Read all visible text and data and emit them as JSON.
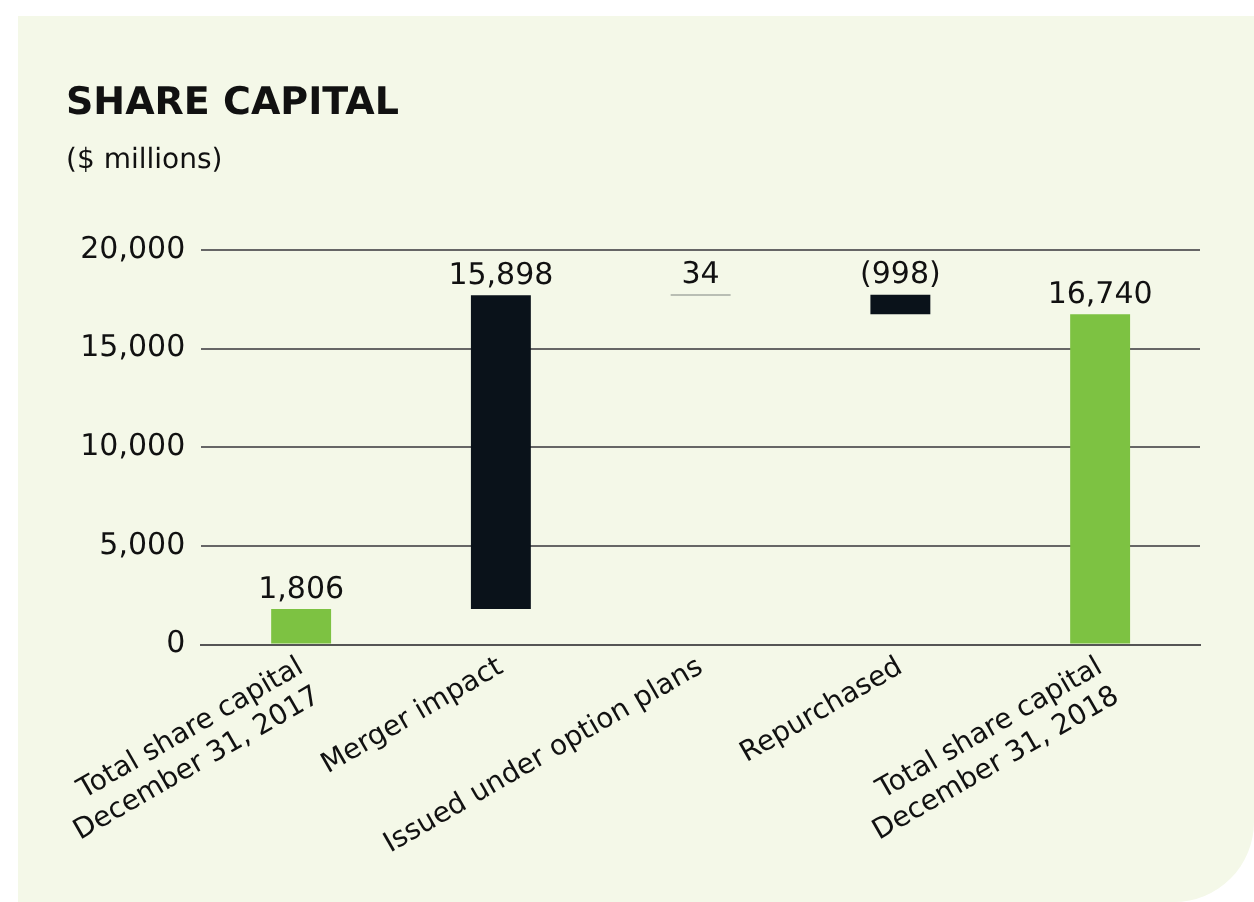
{
  "chart_data": {
    "type": "bar",
    "title": "SHARE CAPITAL",
    "subtitle": "($ millions)",
    "categories": [
      "Total share capital\nDecember 31, 2017",
      "Merger impact",
      "Issued under option plans",
      "Repurchased",
      "Total share capital\nDecember 31, 2018"
    ],
    "values": [
      1806,
      15898,
      34,
      -998,
      16740
    ],
    "base": [
      0,
      1806,
      17704,
      17738,
      0
    ],
    "colors": [
      "#7dc242",
      "#0a121a",
      "#0a121a",
      "#0a121a",
      "#7dc242"
    ],
    "value_labels": [
      "1,806",
      "15,898",
      "34",
      "(998)",
      "16,740"
    ],
    "ylim": [
      0,
      20000
    ],
    "yticks": [
      {
        "value": 0,
        "label": "0"
      },
      {
        "value": 5000,
        "label": "5,000"
      },
      {
        "value": 10000,
        "label": "10,000"
      },
      {
        "value": 15000,
        "label": "15,000"
      },
      {
        "value": 20000,
        "label": "20,000"
      }
    ],
    "grid": "y"
  }
}
